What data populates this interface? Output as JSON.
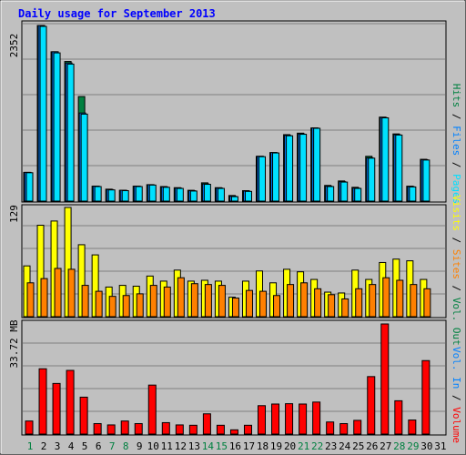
{
  "chart_data": {
    "type": "bar",
    "title": "Daily usage for September 2013",
    "x": [
      "1",
      "2",
      "3",
      "4",
      "5",
      "6",
      "7",
      "8",
      "9",
      "10",
      "11",
      "12",
      "13",
      "14",
      "15",
      "16",
      "17",
      "18",
      "19",
      "20",
      "21",
      "22",
      "23",
      "24",
      "25",
      "26",
      "27",
      "28",
      "29",
      "30",
      "31"
    ],
    "weekend_days": [
      1,
      7,
      8,
      14,
      15,
      21,
      22,
      28,
      29
    ],
    "panels": [
      {
        "id": "hits",
        "ymax": 2352,
        "ymax_label": "2352",
        "side_labels": [
          "Hits",
          "Files",
          "Pages"
        ],
        "series": [
          {
            "name": "Hits",
            "color": "#008040",
            "values": [
              385,
              2352,
              2000,
              1870,
              1400,
              200,
              160,
              145,
              200,
              220,
              195,
              180,
              145,
              245,
              180,
              75,
              140,
              600,
              650,
              890,
              910,
              980,
              210,
              270,
              185,
              600,
              1125,
              900,
              200,
              560,
              null
            ]
          },
          {
            "name": "Files",
            "color": "#0080ff",
            "values": [
              385,
              2352,
              2000,
              1850,
              1180,
              200,
              155,
              145,
              200,
              220,
              190,
              175,
              140,
              230,
              175,
              65,
              135,
              600,
              650,
              880,
              900,
              980,
              200,
              260,
              175,
              580,
              1120,
              890,
              195,
              555,
              null
            ]
          },
          {
            "name": "Pages",
            "color": "#00e0ff",
            "values": [
              380,
              2340,
              1985,
              1835,
              1165,
              195,
              150,
              140,
              195,
              215,
              185,
              170,
              135,
              225,
              170,
              60,
              130,
              595,
              645,
              875,
              895,
              975,
              195,
              255,
              170,
              575,
              1115,
              885,
              190,
              550,
              null
            ]
          }
        ]
      },
      {
        "id": "visits",
        "ymax": 129,
        "ymax_label": "129",
        "side_labels": [
          "Visits",
          "Sites"
        ],
        "series": [
          {
            "name": "Visits",
            "color": "#ffff00",
            "values": [
              60,
              108,
              113,
              129,
              85,
              73,
              35,
              37,
              36,
              48,
              42,
              55,
              42,
              43,
              42,
              23,
              42,
              54,
              40,
              56,
              53,
              44,
              29,
              28,
              55,
              44,
              64,
              68,
              66,
              44,
              null
            ]
          },
          {
            "name": "Sites",
            "color": "#ff8000",
            "values": [
              40,
              45,
              57,
              56,
              37,
              30,
              24,
              25,
              27,
              37,
              35,
              46,
              39,
              38,
              37,
              22,
              31,
              30,
              25,
              38,
              40,
              33,
              26,
              21,
              33,
              38,
              46,
              43,
              38,
              33,
              null
            ]
          }
        ]
      },
      {
        "id": "volume",
        "ymax_label": "33.72 MB",
        "side_labels": [
          "Volume",
          "Vol. In",
          "Vol. Out"
        ],
        "series": [
          {
            "name": "Volume",
            "color": "#ff0000",
            "values": [
              4.0,
              20.0,
              15.5,
              19.5,
              11.3,
              3.2,
              2.8,
              4.0,
              3.2,
              15.0,
              3.5,
              2.8,
              2.7,
              6.2,
              2.7,
              1.3,
              2.7,
              8.7,
              9.2,
              9.3,
              9.2,
              9.8,
              3.7,
              3.2,
              4.2,
              17.6,
              33.72,
              10.2,
              4.3,
              22.5,
              null
            ]
          }
        ]
      }
    ],
    "legend_separator": " / ",
    "legend_right_top": [
      {
        "text": "Hits",
        "color": "#008040"
      },
      {
        "text": "Files",
        "color": "#0080ff"
      },
      {
        "text": "Pages",
        "color": "#00e0ff"
      }
    ],
    "legend_right_middle": [
      {
        "text": "Visits",
        "color": "#ffff00"
      },
      {
        "text": "Sites",
        "color": "#ff8000"
      },
      {
        "text": "Vol. Out",
        "color": "#008040"
      }
    ],
    "legend_right_bottom": [
      {
        "text": "Vol. In",
        "color": "#0080ff"
      },
      {
        "text": "Volume",
        "color": "#ff0000"
      }
    ],
    "colors": {
      "background": "#c0c0c0",
      "title": "#0000ff",
      "weekday_label": "#000000",
      "weekend_label": "#008040",
      "gridline": "#808080"
    }
  }
}
